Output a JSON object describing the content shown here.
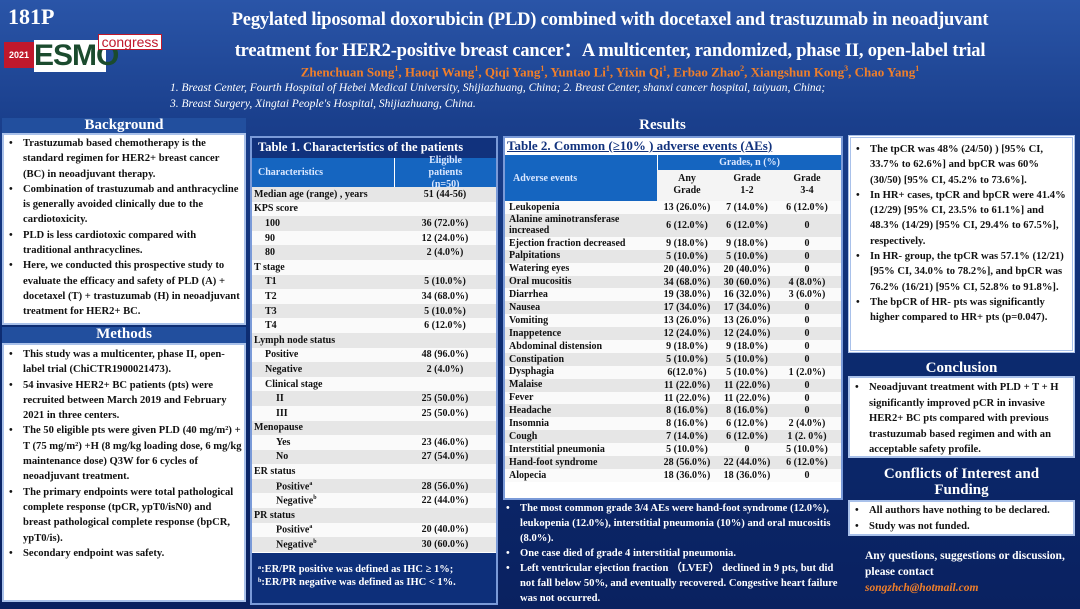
{
  "header": {
    "poster_id": "181P",
    "logo": {
      "year": "2021",
      "brand": "ESMO",
      "suffix": "congress"
    },
    "title_line1": "Pegylated liposomal doxorubicin (PLD) combined with docetaxel and trastuzumab in neoadjuvant",
    "title_line2": "treatment for HER2-positive breast cancer：A multicenter, randomized, phase II, open-label trial",
    "authors": [
      {
        "name": "Zhenchuan Song",
        "aff": "1"
      },
      {
        "name": "Haoqi Wang",
        "aff": "1"
      },
      {
        "name": "Qiqi Yang",
        "aff": "1"
      },
      {
        "name": "Yuntao Li",
        "aff": "1"
      },
      {
        "name": "Yixin Qi",
        "aff": "1"
      },
      {
        "name": "Erbao Zhao",
        "aff": "2"
      },
      {
        "name": "Xiangshun Kong",
        "aff": "3"
      },
      {
        "name": "Chao Yang",
        "aff": "1"
      }
    ],
    "affiliations_line1": "1. Breast Center, Fourth Hospital of Hebei Medical University, Shijiazhuang, China; 2. Breast Center, shanxi cancer hospital, taiyuan, China;",
    "affiliations_line2": "3. Breast Surgery, Xingtai People's Hospital, Shijiazhuang, China."
  },
  "background": {
    "heading": "Background",
    "items": [
      "Trastuzumab based chemotherapy is the standard regimen for HER2+ breast cancer (BC) in neoadjuvant therapy.",
      "Combination of trastuzumab and anthracycline is generally avoided clinically due to the cardiotoxicity.",
      "PLD is less cardiotoxic compared with traditional anthracyclines.",
      "Here, we conducted this prospective study to evaluate the efficacy and safety of PLD (A) + docetaxel (T) + trastuzumab (H) in neoadjuvant treatment for HER2+ BC."
    ]
  },
  "methods": {
    "heading": "Methods",
    "items": [
      "This study was a multicenter, phase II, open-label trial (ChiCTR1900021473).",
      "54 invasive HER2+ BC patients (pts) were recruited between March 2019 and February 2021 in three centers.",
      "The 50 eligible pts were given PLD (40 mg/m²) + T (75 mg/m²) +H (8 mg/kg loading dose, 6 mg/kg maintenance dose) Q3W for 6 cycles of neoadjuvant treatment.",
      "The primary endpoints were total pathological complete response (tpCR, ypT0/isN0) and breast pathological complete response (bpCR, ypT0/is).",
      "Secondary endpoint was safety."
    ]
  },
  "results": {
    "heading": "Results"
  },
  "table1": {
    "title": "Table 1. Characteristics of the patients",
    "col1": "Characteristics",
    "col2": "Eligible patients (n=50)",
    "rows": [
      {
        "label": "Median age (range) , years",
        "value": "51 (44-56)",
        "level": 0
      },
      {
        "label": "KPS score",
        "value": "",
        "level": 0
      },
      {
        "label": "100",
        "value": "36 (72.0%)",
        "level": 1
      },
      {
        "label": "90",
        "value": "12 (24.0%)",
        "level": 1
      },
      {
        "label": "80",
        "value": "2 (4.0%)",
        "level": 1
      },
      {
        "label": "T stage",
        "value": "",
        "level": 0
      },
      {
        "label": "T1",
        "value": "5 (10.0%)",
        "level": 1
      },
      {
        "label": "T2",
        "value": "34 (68.0%)",
        "level": 1
      },
      {
        "label": "T3",
        "value": "5 (10.0%)",
        "level": 1
      },
      {
        "label": "T4",
        "value": "6 (12.0%)",
        "level": 1
      },
      {
        "label": "Lymph node status",
        "value": "",
        "level": 0
      },
      {
        "label": "Positive",
        "value": "48 (96.0%)",
        "level": 1
      },
      {
        "label": "Negative",
        "value": "2 (4.0%)",
        "level": 1
      },
      {
        "label": "Clinical stage",
        "value": "",
        "level": 1
      },
      {
        "label": "II",
        "value": "25 (50.0%)",
        "level": 2
      },
      {
        "label": "III",
        "value": "25 (50.0%)",
        "level": 2
      },
      {
        "label": "Menopause",
        "value": "",
        "level": 0
      },
      {
        "label": "Yes",
        "value": "23 (46.0%)",
        "level": 2
      },
      {
        "label": "No",
        "value": "27 (54.0%)",
        "level": 2
      },
      {
        "label": "ER status",
        "value": "",
        "level": 0
      },
      {
        "label": "Positive",
        "sup": "a",
        "value": "28 (56.0%)",
        "level": 2
      },
      {
        "label": "Negative",
        "sup": "b",
        "value": "22 (44.0%)",
        "level": 2
      },
      {
        "label": "PR status",
        "value": "",
        "level": 0
      },
      {
        "label": "Positive",
        "sup": "a",
        "value": "20 (40.0%)",
        "level": 2
      },
      {
        "label": "Negative",
        "sup": "b",
        "value": "30 (60.0%)",
        "level": 2
      }
    ],
    "footnote1": "ᵃ:ER/PR positive was defined as IHC ≥ 1%;",
    "footnote2": "ᵇ:ER/PR negative was defined as IHC  < 1%."
  },
  "table2": {
    "title": "Table 2. Common (≥10% ) adverse events  (AEs)",
    "col_ae": "Adverse events",
    "col_group": "Grades, n (%)",
    "col_any": "Any Grade",
    "col_12": "Grade 1-2",
    "col_34": "Grade 3-4",
    "rows": [
      [
        "Leukopenia",
        "13 (26.0%)",
        "7 (14.0%)",
        "6 (12.0%)"
      ],
      [
        "Alanine aminotransferase increased",
        "6 (12.0%)",
        "6 (12.0%)",
        "0"
      ],
      [
        "Ejection fraction decreased",
        "9 (18.0%)",
        "9 (18.0%)",
        "0"
      ],
      [
        "Palpitations",
        "5 (10.0%)",
        "5 (10.0%)",
        "0"
      ],
      [
        "Watering eyes",
        "20 (40.0%)",
        "20 (40.0%)",
        "0"
      ],
      [
        "Oral mucositis",
        "34 (68.0%)",
        "30 (60.0%)",
        "4 (8.0%)"
      ],
      [
        "Diarrhea",
        "19 (38.0%)",
        "16 (32.0%)",
        "3 (6.0%)"
      ],
      [
        "Nausea",
        "17 (34.0%)",
        "17 (34.0%)",
        "0"
      ],
      [
        "Vomiting",
        "13 (26.0%)",
        "13 (26.0%)",
        "0"
      ],
      [
        "Inappetence",
        "12 (24.0%)",
        "12 (24.0%)",
        "0"
      ],
      [
        "Abdominal distension",
        "9 (18.0%)",
        "9 (18.0%)",
        "0"
      ],
      [
        "Constipation",
        "5 (10.0%)",
        "5 (10.0%)",
        "0"
      ],
      [
        "Dysphagia",
        "6(12.0%)",
        "5 (10.0%)",
        "1 (2.0%)"
      ],
      [
        "Malaise",
        "11 (22.0%)",
        "11 (22.0%)",
        "0"
      ],
      [
        "Fever",
        "11 (22.0%)",
        "11 (22.0%)",
        "0"
      ],
      [
        "Headache",
        "8 (16.0%)",
        "8 (16.0%)",
        "0"
      ],
      [
        "Insomnia",
        "8 (16.0%)",
        "6 (12.0%)",
        "2 (4.0%)"
      ],
      [
        "Cough",
        "7 (14.0%)",
        "6 (12.0%)",
        "1 (2. 0%)"
      ],
      [
        "Interstitial pneumonia",
        "5 (10.0%)",
        "0",
        "5 (10.0%)"
      ],
      [
        "Hand-foot syndrome",
        "28 (56.0%)",
        "22 (44.0%)",
        "6 (12.0%)"
      ],
      [
        "Alopecia",
        "18 (36.0%)",
        "18 (36.0%)",
        "0"
      ]
    ],
    "notes": [
      "The most common grade 3/4 AEs were hand-foot syndrome (12.0%), leukopenia (12.0%), interstitial pneumonia (10%) and oral mucositis (8.0%).",
      "One case died of grade 4 interstitial pneumonia.",
      "Left ventricular ejection fraction （LVEF） declined in 9 pts, but did not fall below 50%, and eventually recovered. Congestive heart failure was not occurred."
    ]
  },
  "efficacy": {
    "items": [
      "The tpCR was 48% (24/50) ) [95% CI, 33.7% to 62.6%]  and bpCR was 60% (30/50) [95% CI, 45.2% to 73.6%].",
      "In HR+ cases, tpCR and bpCR were 41.4% (12/29) [95% CI, 23.5% to 61.1%] and 48.3% (14/29) [95% CI, 29.4% to 67.5%], respectively.",
      "In HR- group, the tpCR was 57.1% (12/21) [95% CI, 34.0% to 78.2%], and bpCR was 76.2% (16/21) [95% CI, 52.8% to 91.8%].",
      "The bpCR of HR- pts was significantly higher compared to HR+ pts (p=0.047)."
    ]
  },
  "conclusion": {
    "heading": "Conclusion",
    "items": [
      "Neoadjuvant treatment with PLD + T + H significantly improved pCR in invasive HER2+ BC pts compared with previous trastuzumab based regimen and with an acceptable safety profile."
    ]
  },
  "conflicts": {
    "heading": "Conflicts of Interest and Funding",
    "items": [
      "All authors have nothing to be declared.",
      "Study was not funded."
    ]
  },
  "contact": {
    "text": "Any questions, suggestions or discussion, please contact",
    "email": "songzhch@hotmail.com"
  },
  "colors": {
    "accent_orange": "#f07f2a",
    "navy": "#0c2a6e",
    "table_header": "#1565c0"
  }
}
